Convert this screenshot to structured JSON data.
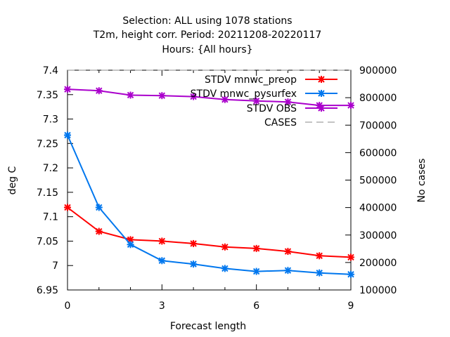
{
  "chart_data": {
    "type": "line",
    "title_lines": [
      "Selection: ALL using  1078 stations",
      "T2m, height corr.   Period: 20211208-20220117",
      "Hours: {All hours}"
    ],
    "xlabel": "Forecast length",
    "ylabel": "deg C",
    "y2label": "No cases",
    "xlim": [
      0,
      9
    ],
    "ylim": [
      6.95,
      7.4
    ],
    "y2lim": [
      100000,
      900000
    ],
    "xticks": [
      "0",
      "3",
      "6",
      "9"
    ],
    "xtick_values": [
      0,
      3,
      6,
      9
    ],
    "yticks": [
      "6.95",
      "7",
      "7.05",
      "7.1",
      "7.15",
      "7.2",
      "7.25",
      "7.3",
      "7.35",
      "7.4"
    ],
    "ytick_values": [
      6.95,
      7.0,
      7.05,
      7.1,
      7.15,
      7.2,
      7.25,
      7.3,
      7.35,
      7.4
    ],
    "y2ticks": [
      "100000",
      "200000",
      "300000",
      "400000",
      "500000",
      "600000",
      "700000",
      "800000",
      "900000"
    ],
    "y2tick_values": [
      100000,
      200000,
      300000,
      400000,
      500000,
      600000,
      700000,
      800000,
      900000
    ],
    "grid": false,
    "legend_position": "top-right",
    "x": [
      0,
      1,
      2,
      3,
      4,
      5,
      6,
      7,
      8,
      9
    ],
    "series": [
      {
        "name": "STDV mnwc_preop",
        "color": "#ff0000",
        "axis": "y",
        "values": [
          7.119,
          7.07,
          7.053,
          7.05,
          7.045,
          7.038,
          7.035,
          7.029,
          7.02,
          7.017
        ]
      },
      {
        "name": "STDV mnwc_pysurfex",
        "color": "#0077ee",
        "axis": "y",
        "values": [
          7.267,
          7.119,
          7.043,
          7.01,
          7.003,
          6.994,
          6.988,
          6.99,
          6.985,
          6.982
        ]
      },
      {
        "name": "STDV OBS",
        "color": "#aa00cc",
        "axis": "y",
        "values": [
          7.361,
          7.358,
          7.349,
          7.348,
          7.346,
          7.34,
          7.337,
          7.335,
          7.328,
          7.328
        ]
      },
      {
        "name": "CASES",
        "color": "#888888",
        "axis": "y2",
        "dashed": true,
        "values": [
          900000,
          900000,
          900000,
          900000,
          900000,
          900000,
          900000,
          900000,
          900000,
          900000
        ]
      }
    ]
  }
}
